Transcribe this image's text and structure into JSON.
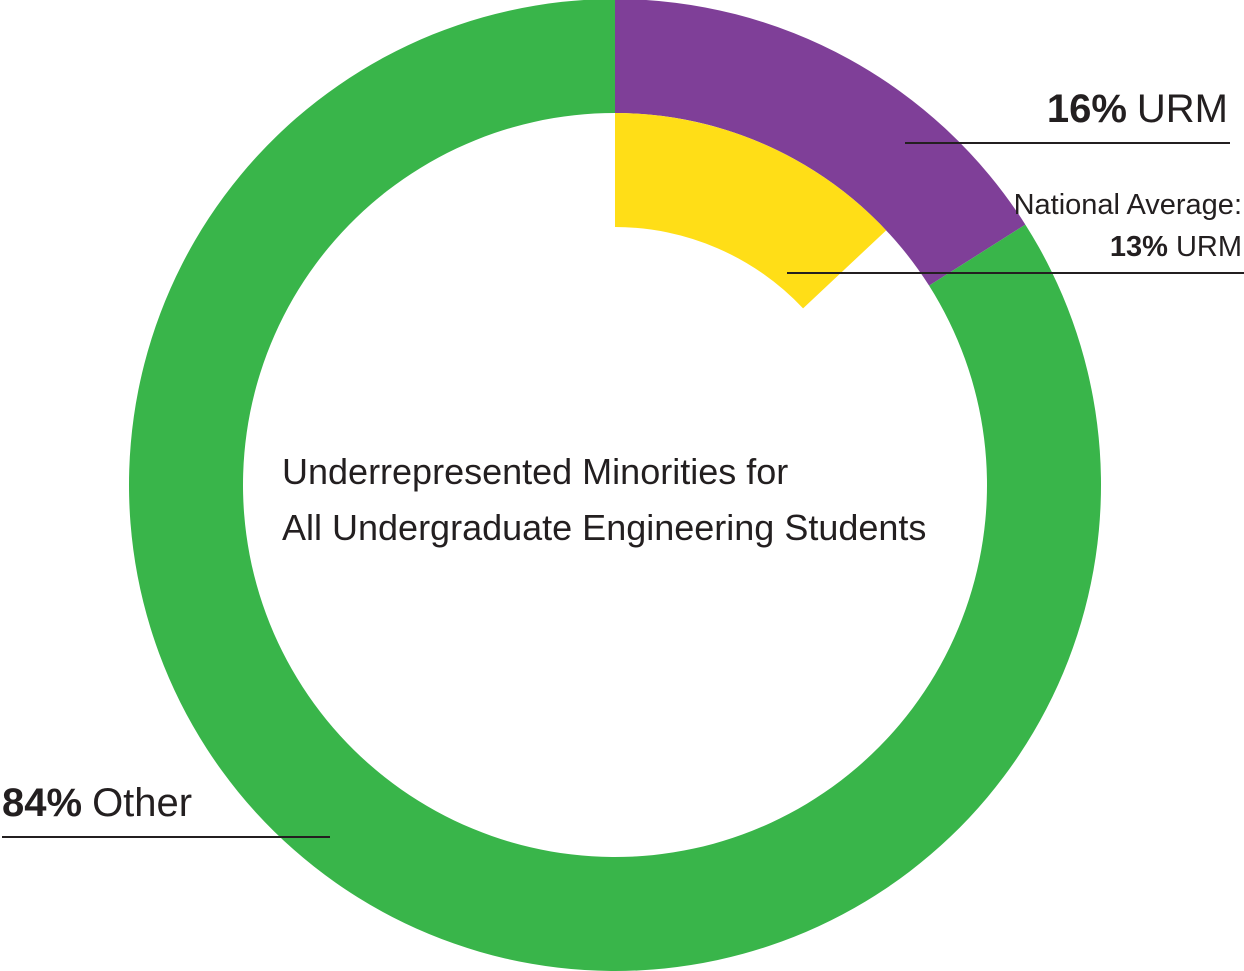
{
  "chart_data": {
    "type": "pie",
    "title": "Underrepresented Minorities for All Undergraduate Engineering Students",
    "title_lines": [
      "Underrepresented Minorities for",
      "All Undergraduate Engineering Students"
    ],
    "style": "donut",
    "slices": [
      {
        "name": "URM",
        "value": 16,
        "value_text": "16%",
        "color": "#7f3f98"
      },
      {
        "name": "Other",
        "value": 84,
        "value_text": "84%",
        "color": "#39b54a"
      }
    ],
    "benchmark": {
      "label": "National Average:",
      "name": "URM",
      "value": 13,
      "value_text": "13%",
      "color": "#ffde17"
    },
    "legend": "none"
  }
}
